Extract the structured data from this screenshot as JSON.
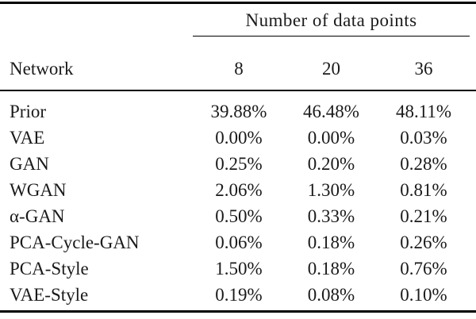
{
  "table": {
    "span_header": "Number of data points",
    "col_headers": {
      "network": "Network",
      "n8": "8",
      "n20": "20",
      "n36": "36"
    },
    "rows": [
      {
        "network": "Prior",
        "v8": "39.88%",
        "v20": "46.48%",
        "v36": "48.11%"
      },
      {
        "network": "VAE",
        "v8": "0.00%",
        "v20": "0.00%",
        "v36": "0.03%"
      },
      {
        "network": "GAN",
        "v8": "0.25%",
        "v20": "0.20%",
        "v36": "0.28%"
      },
      {
        "network": "WGAN",
        "v8": "2.06%",
        "v20": "1.30%",
        "v36": "0.81%"
      },
      {
        "network": "α-GAN",
        "v8": "0.50%",
        "v20": "0.33%",
        "v36": "0.21%"
      },
      {
        "network": "PCA-Cycle-GAN",
        "v8": "0.06%",
        "v20": "0.18%",
        "v36": "0.26%"
      },
      {
        "network": "PCA-Style",
        "v8": "1.50%",
        "v20": "0.18%",
        "v36": "0.76%"
      },
      {
        "network": "VAE-Style",
        "v8": "0.19%",
        "v20": "0.08%",
        "v36": "0.10%"
      }
    ],
    "colors": {
      "text": "#1a1a1a",
      "rule": "#000000",
      "background": "#ffffff"
    }
  }
}
